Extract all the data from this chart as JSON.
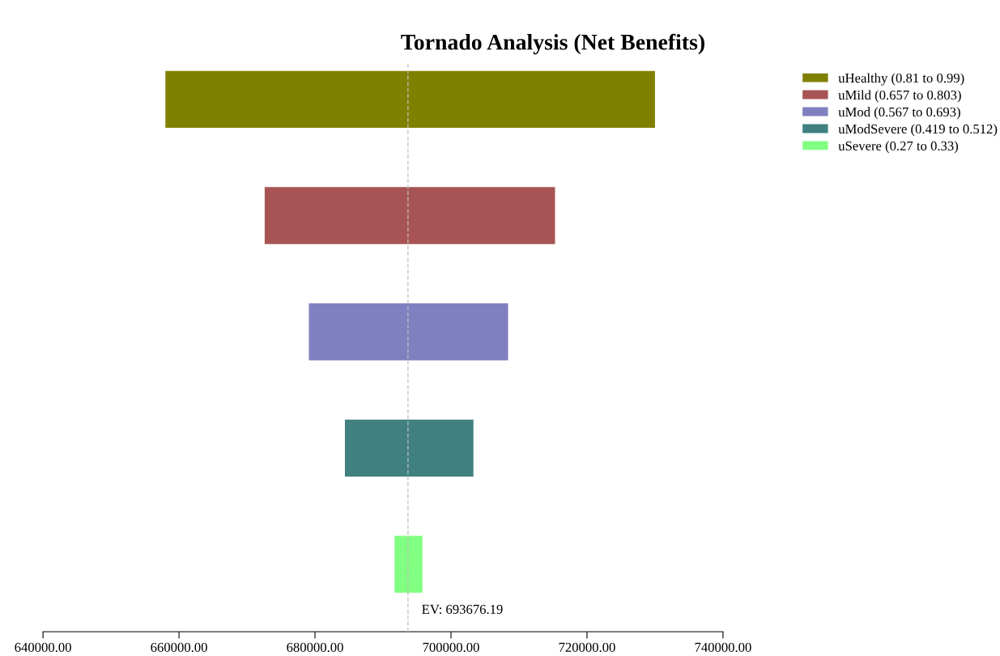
{
  "chart_data": {
    "type": "bar",
    "orientation": "horizontal",
    "title": "Tornado Analysis (Net Benefits)",
    "categories": [
      null,
      null,
      null,
      null,
      null
    ],
    "series": [
      {
        "name": "uHealthy (0.81 to 0.99)",
        "color": "#808000",
        "base": [
          658000,
          null,
          null,
          null,
          null
        ],
        "values": [
          72000,
          null,
          null,
          null,
          null
        ]
      },
      {
        "name": "uMild (0.657 to 0.803)",
        "color": "#a85454",
        "base": [
          null,
          672600,
          null,
          null,
          null
        ],
        "values": [
          null,
          42700,
          null,
          null,
          null
        ]
      },
      {
        "name": "uMod (0.567 to 0.693)",
        "color": "#8080c0",
        "base": [
          null,
          null,
          679100,
          null,
          null
        ],
        "values": [
          null,
          null,
          29300,
          null,
          null
        ]
      },
      {
        "name": "uModSevere (0.419 to 0.512)",
        "color": "#408080",
        "base": [
          null,
          null,
          null,
          684400,
          null
        ],
        "values": [
          null,
          null,
          null,
          18900,
          null
        ]
      },
      {
        "name": "uSevere (0.27 to 0.33)",
        "color": "#80ff80",
        "base": [
          null,
          null,
          null,
          null,
          691700
        ],
        "values": [
          null,
          null,
          null,
          null,
          4100
        ]
      }
    ],
    "xlim": [
      640000,
      740000
    ],
    "xticks": [
      {
        "value": 640000,
        "label": "640000.00"
      },
      {
        "value": 660000,
        "label": "660000.00"
      },
      {
        "value": 680000,
        "label": "680000.00"
      },
      {
        "value": 700000,
        "label": "700000.00"
      },
      {
        "value": 720000,
        "label": "720000.00"
      },
      {
        "value": 740000,
        "label": "740000.00"
      }
    ],
    "ref_lines": [
      {
        "axis": "x",
        "value": 693676.19,
        "label": "EV: 693676.19",
        "color": "#c0c0c0",
        "line_style": "dashed"
      }
    ],
    "tick_labels": "x",
    "grid": false,
    "legend": "top right"
  }
}
